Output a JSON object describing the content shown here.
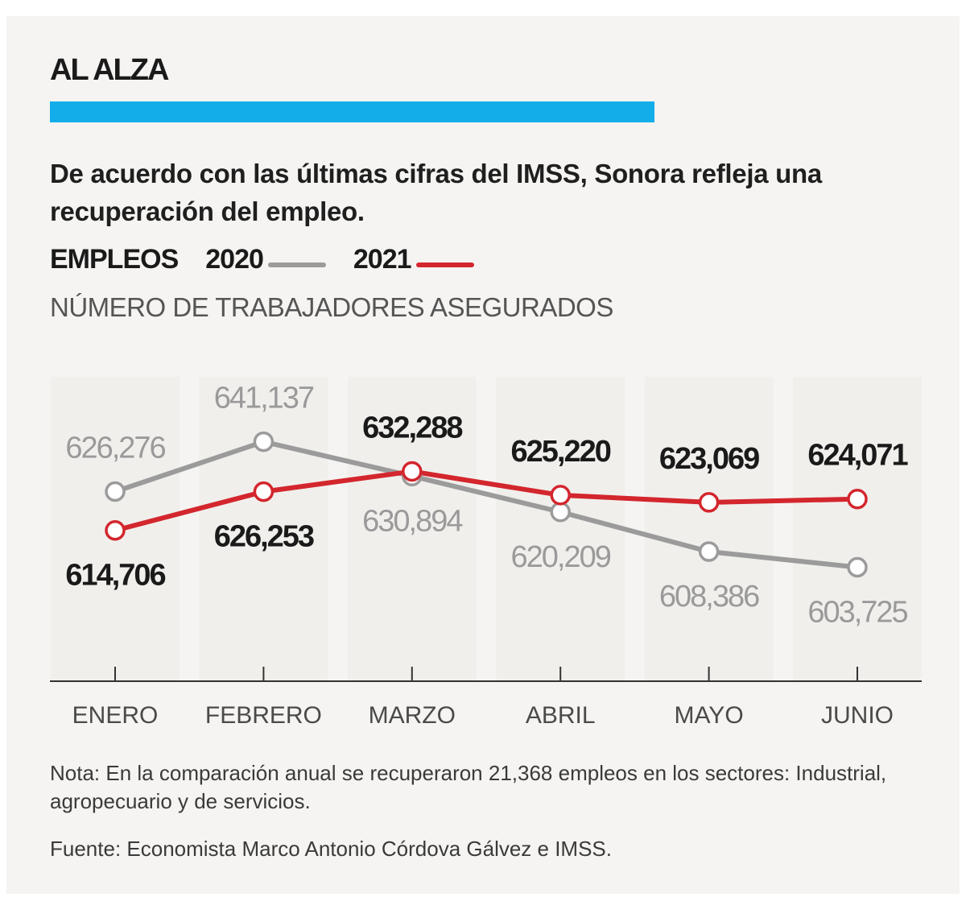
{
  "kicker": "AL ALZA",
  "headline": "De acuerdo con las últimas cifras del IMSS, Sonora refleja una recuperación del empleo.",
  "legend": {
    "metric": "EMPLEOS",
    "items": [
      {
        "label": "2020",
        "color": "#9b9b9b"
      },
      {
        "label": "2021",
        "color": "#d3262d"
      }
    ]
  },
  "subtitle": "NÚMERO DE TRABAJADORES ASEGURADOS",
  "note": "Nota: En la comparación anual se recuperaron 21,368 empleos en los sectores: Industrial, agropecuario y de servicios.",
  "source": "Fuente: Economista Marco Antonio Córdova Gálvez e IMSS.",
  "colors": {
    "accent": "#13aeea",
    "series_2020": "#9b9b9b",
    "series_2021": "#d3262d",
    "background": "#f5f4f2"
  },
  "chart_data": {
    "type": "line",
    "categories": [
      "ENERO",
      "FEBRERO",
      "MARZO",
      "ABRIL",
      "MAYO",
      "JUNIO"
    ],
    "series": [
      {
        "name": "2020",
        "values": [
          626276,
          641137,
          630894,
          620209,
          608386,
          603725
        ],
        "labels": [
          "626,276",
          "641,137",
          "630,894",
          "620,209",
          "608,386",
          "603,725"
        ]
      },
      {
        "name": "2021",
        "values": [
          614706,
          626253,
          632288,
          625220,
          623069,
          624071
        ],
        "labels": [
          "614,706",
          "626,253",
          "632,288",
          "625,220",
          "623,069",
          "624,071"
        ]
      }
    ],
    "ylabel": "NÚMERO DE TRABAJADORES ASEGURADOS",
    "ylim": [
      570000,
      660000
    ],
    "grid": false,
    "legend": "top-left"
  }
}
